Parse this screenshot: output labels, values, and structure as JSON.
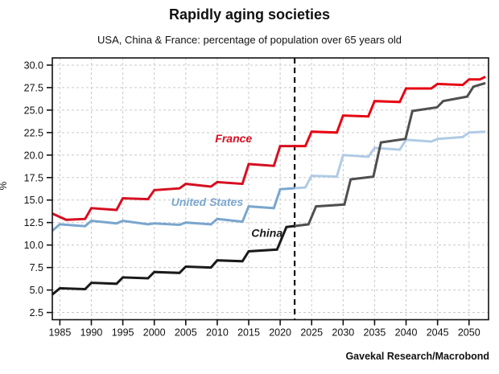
{
  "page": {
    "title": "Rapidly aging societies",
    "subtitle": "USA, China & France: percentage of population over 65 years old",
    "attribution": "Gavekal Research/Macrobond"
  },
  "chart_data": {
    "type": "line",
    "title": "Rapidly aging societies",
    "subtitle": "USA, China & France: percentage of population over 65 years old",
    "xlabel": "",
    "ylabel": "%",
    "legend": "inline-labels",
    "grid": true,
    "grid_color": "#c9c9c9",
    "xlim": [
      1983.8,
      2053.1
    ],
    "ylim": [
      1.7,
      30.8
    ],
    "x_ticks": [
      "1985",
      "1990",
      "1995",
      "2000",
      "2005",
      "2010",
      "2015",
      "2020",
      "2025",
      "2030",
      "2035",
      "2040",
      "2045",
      "2050"
    ],
    "y_ticks": [
      "2.5",
      "5.0",
      "7.5",
      "10.0",
      "12.5",
      "15.0",
      "17.5",
      "20.0",
      "22.5",
      "25.0",
      "27.5",
      "30.0"
    ],
    "forecast_divider_year": 2022.3,
    "divider_color": "#111111",
    "series": [
      {
        "name": "France",
        "color": "#d60e20",
        "forecast_color": "#e60613",
        "label_color": "#d60e20",
        "label_at": [
          2012.6,
          21.4
        ],
        "points": [
          [
            1983.8,
            13.5
          ],
          [
            1986,
            12.8
          ],
          [
            1989,
            12.9
          ],
          [
            1990,
            14.1
          ],
          [
            1994,
            13.9
          ],
          [
            1995,
            15.2
          ],
          [
            1999,
            15.1
          ],
          [
            2000,
            16.1
          ],
          [
            2004,
            16.3
          ],
          [
            2005,
            16.8
          ],
          [
            2009,
            16.5
          ],
          [
            2010,
            17.0
          ],
          [
            2014,
            16.8
          ],
          [
            2015,
            19.0
          ],
          [
            2019,
            18.8
          ],
          [
            2020,
            21.0
          ],
          [
            2024,
            21.0
          ],
          [
            2025,
            22.6
          ],
          [
            2029,
            22.5
          ],
          [
            2030,
            24.4
          ],
          [
            2034,
            24.3
          ],
          [
            2035,
            26.0
          ],
          [
            2039,
            25.9
          ],
          [
            2040,
            27.4
          ],
          [
            2044,
            27.4
          ],
          [
            2045,
            27.9
          ],
          [
            2049,
            27.8
          ],
          [
            2050,
            28.4
          ],
          [
            2051.7,
            28.4
          ],
          [
            2052.6,
            28.7
          ]
        ]
      },
      {
        "name": "United States",
        "color": "#7aa6ce",
        "forecast_color": "#b0cbe4",
        "label_color": "#7aa6ce",
        "label_at": [
          2008.4,
          14.35
        ],
        "points": [
          [
            1983.8,
            11.6
          ],
          [
            1985,
            12.3
          ],
          [
            1989,
            12.1
          ],
          [
            1990,
            12.7
          ],
          [
            1994,
            12.4
          ],
          [
            1995,
            12.7
          ],
          [
            1999,
            12.3
          ],
          [
            2000,
            12.4
          ],
          [
            2004,
            12.25
          ],
          [
            2005,
            12.5
          ],
          [
            2009,
            12.3
          ],
          [
            2010,
            12.9
          ],
          [
            2014,
            12.6
          ],
          [
            2015,
            14.3
          ],
          [
            2019,
            14.1
          ],
          [
            2020,
            16.2
          ],
          [
            2024,
            16.4
          ],
          [
            2025,
            17.7
          ],
          [
            2029,
            17.6
          ],
          [
            2030,
            20.0
          ],
          [
            2034,
            19.8
          ],
          [
            2035,
            20.8
          ],
          [
            2039,
            20.6
          ],
          [
            2040,
            21.7
          ],
          [
            2044,
            21.5
          ],
          [
            2045,
            21.8
          ],
          [
            2049,
            22.0
          ],
          [
            2050,
            22.5
          ],
          [
            2052.6,
            22.6
          ]
        ]
      },
      {
        "name": "China",
        "color": "#1a1a1a",
        "forecast_color": "#4f4f4f",
        "label_color": "#1a1a1a",
        "label_at": [
          2017.9,
          10.9
        ],
        "points": [
          [
            1983.8,
            4.5
          ],
          [
            1985,
            5.2
          ],
          [
            1989,
            5.1
          ],
          [
            1990,
            5.8
          ],
          [
            1994,
            5.7
          ],
          [
            1995,
            6.4
          ],
          [
            1999,
            6.3
          ],
          [
            2000,
            7.0
          ],
          [
            2004,
            6.9
          ],
          [
            2005,
            7.6
          ],
          [
            2009,
            7.5
          ],
          [
            2010,
            8.3
          ],
          [
            2014,
            8.2
          ],
          [
            2015,
            9.3
          ],
          [
            2019.5,
            9.5
          ],
          [
            2021,
            12.0
          ],
          [
            2024.5,
            12.3
          ],
          [
            2025.7,
            14.3
          ],
          [
            2030.2,
            14.5
          ],
          [
            2031.2,
            17.3
          ],
          [
            2034.8,
            17.6
          ],
          [
            2036,
            21.4
          ],
          [
            2039.9,
            21.8
          ],
          [
            2041,
            24.9
          ],
          [
            2044.9,
            25.3
          ],
          [
            2045.9,
            26.0
          ],
          [
            2049.7,
            26.5
          ],
          [
            2050.7,
            27.6
          ],
          [
            2052.6,
            28.0
          ]
        ]
      }
    ]
  }
}
